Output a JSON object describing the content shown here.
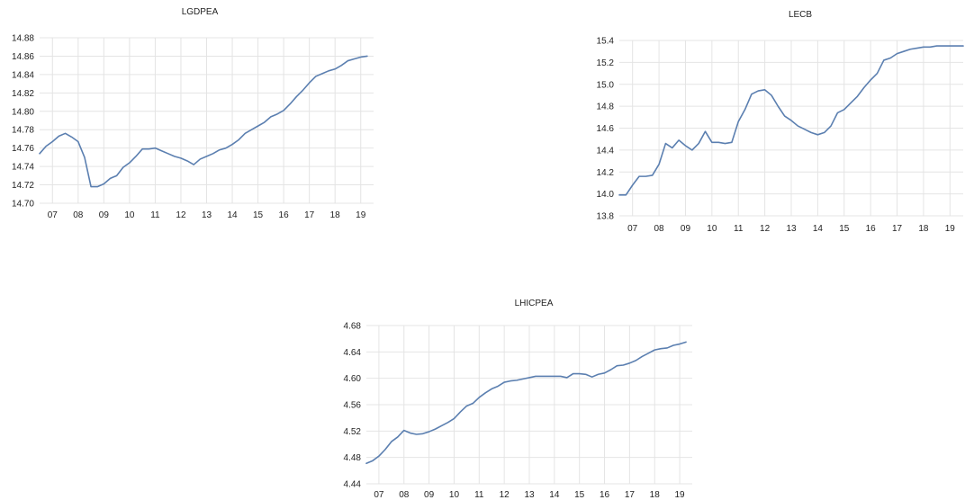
{
  "colors": {
    "series": "#5b7fb0",
    "grid": "#e4e4e4",
    "text": "#222222"
  },
  "chart_data": [
    {
      "type": "line",
      "title": "LGDPEA",
      "categories": [
        "07",
        "08",
        "09",
        "10",
        "11",
        "12",
        "13",
        "14",
        "15",
        "16",
        "17",
        "18",
        "19"
      ],
      "yticks": [
        "14.70",
        "14.72",
        "14.74",
        "14.76",
        "14.78",
        "14.80",
        "14.82",
        "14.84",
        "14.86",
        "14.88"
      ],
      "ylim": [
        14.7,
        14.88
      ],
      "xlim": [
        2006.5,
        2019.5
      ],
      "grid": true,
      "series": [
        {
          "x": [
            2006.5,
            2006.75,
            2007.0,
            2007.25,
            2007.5,
            2007.75,
            2008.0,
            2008.25,
            2008.5,
            2008.75,
            2009.0,
            2009.25,
            2009.5,
            2009.75,
            2010.0,
            2010.25,
            2010.5,
            2010.75,
            2011.0,
            2011.25,
            2011.5,
            2011.75,
            2012.0,
            2012.25,
            2012.5,
            2012.75,
            2013.0,
            2013.25,
            2013.5,
            2013.75,
            2014.0,
            2014.25,
            2014.5,
            2014.75,
            2015.0,
            2015.25,
            2015.5,
            2015.75,
            2016.0,
            2016.25,
            2016.5,
            2016.75,
            2017.0,
            2017.25,
            2017.5,
            2017.75,
            2018.0,
            2018.25,
            2018.5,
            2018.75,
            2019.0,
            2019.25
          ],
          "values": [
            14.754,
            14.762,
            14.767,
            14.773,
            14.776,
            14.772,
            14.767,
            14.75,
            14.718,
            14.718,
            14.721,
            14.727,
            14.73,
            14.739,
            14.744,
            14.751,
            14.759,
            14.759,
            14.76,
            14.757,
            14.754,
            14.751,
            14.749,
            14.746,
            14.742,
            14.748,
            14.751,
            14.754,
            14.758,
            14.76,
            14.764,
            14.769,
            14.776,
            14.78,
            14.784,
            14.788,
            14.794,
            14.797,
            14.801,
            14.808,
            14.816,
            14.823,
            14.831,
            14.838,
            14.841,
            14.844,
            14.846,
            14.85,
            14.855,
            14.857,
            14.859,
            14.86
          ]
        }
      ]
    },
    {
      "type": "line",
      "title": "LECB",
      "categories": [
        "07",
        "08",
        "09",
        "10",
        "11",
        "12",
        "13",
        "14",
        "15",
        "16",
        "17",
        "18",
        "19"
      ],
      "yticks": [
        "13.8",
        "14.0",
        "14.2",
        "14.4",
        "14.6",
        "14.8",
        "15.0",
        "15.2",
        "15.4"
      ],
      "ylim": [
        13.8,
        15.4
      ],
      "xlim": [
        2006.5,
        2019.5
      ],
      "grid": true,
      "series": [
        {
          "x": [
            2006.5,
            2006.75,
            2007.0,
            2007.25,
            2007.5,
            2007.75,
            2008.0,
            2008.25,
            2008.5,
            2008.75,
            2009.0,
            2009.25,
            2009.5,
            2009.75,
            2010.0,
            2010.25,
            2010.5,
            2010.75,
            2011.0,
            2011.25,
            2011.5,
            2011.75,
            2012.0,
            2012.25,
            2012.5,
            2012.75,
            2013.0,
            2013.25,
            2013.5,
            2013.75,
            2014.0,
            2014.25,
            2014.5,
            2014.75,
            2015.0,
            2015.25,
            2015.5,
            2015.75,
            2016.0,
            2016.25,
            2016.5,
            2016.75,
            2017.0,
            2017.25,
            2017.5,
            2017.75,
            2018.0,
            2018.25,
            2018.5,
            2018.75,
            2019.0,
            2019.25,
            2019.5
          ],
          "values": [
            13.99,
            13.99,
            14.08,
            14.16,
            14.16,
            14.17,
            14.27,
            14.46,
            14.42,
            14.49,
            14.44,
            14.4,
            14.46,
            14.57,
            14.47,
            14.47,
            14.46,
            14.47,
            14.66,
            14.77,
            14.91,
            14.94,
            14.95,
            14.9,
            14.8,
            14.71,
            14.67,
            14.62,
            14.59,
            14.56,
            14.54,
            14.56,
            14.62,
            14.74,
            14.77,
            14.83,
            14.89,
            14.97,
            15.04,
            15.1,
            15.22,
            15.24,
            15.28,
            15.3,
            15.32,
            15.33,
            15.34,
            15.34,
            15.35,
            15.35,
            15.35,
            15.35,
            15.35
          ]
        }
      ]
    },
    {
      "type": "line",
      "title": "LHICPEA",
      "categories": [
        "07",
        "08",
        "09",
        "10",
        "11",
        "12",
        "13",
        "14",
        "15",
        "16",
        "17",
        "18",
        "19"
      ],
      "yticks": [
        "4.44",
        "4.48",
        "4.52",
        "4.56",
        "4.60",
        "4.64",
        "4.68"
      ],
      "ylim": [
        4.44,
        4.68
      ],
      "xlim": [
        2006.5,
        2019.5
      ],
      "grid": true,
      "series": [
        {
          "x": [
            2006.5,
            2006.75,
            2007.0,
            2007.25,
            2007.5,
            2007.75,
            2008.0,
            2008.25,
            2008.5,
            2008.75,
            2009.0,
            2009.25,
            2009.5,
            2009.75,
            2010.0,
            2010.25,
            2010.5,
            2010.75,
            2011.0,
            2011.25,
            2011.5,
            2011.75,
            2012.0,
            2012.25,
            2012.5,
            2012.75,
            2013.0,
            2013.25,
            2013.5,
            2013.75,
            2014.0,
            2014.25,
            2014.5,
            2014.75,
            2015.0,
            2015.25,
            2015.5,
            2015.75,
            2016.0,
            2016.25,
            2016.5,
            2016.75,
            2017.0,
            2017.25,
            2017.5,
            2017.75,
            2018.0,
            2018.25,
            2018.5,
            2018.75,
            2019.0,
            2019.25
          ],
          "values": [
            4.471,
            4.475,
            4.482,
            4.492,
            4.504,
            4.511,
            4.521,
            4.517,
            4.515,
            4.516,
            4.519,
            4.523,
            4.528,
            4.533,
            4.539,
            4.549,
            4.558,
            4.562,
            4.571,
            4.578,
            4.584,
            4.588,
            4.594,
            4.596,
            4.597,
            4.599,
            4.601,
            4.603,
            4.603,
            4.603,
            4.603,
            4.603,
            4.601,
            4.607,
            4.607,
            4.606,
            4.602,
            4.606,
            4.608,
            4.613,
            4.619,
            4.62,
            4.623,
            4.627,
            4.633,
            4.638,
            4.643,
            4.645,
            4.646,
            4.65,
            4.652,
            4.655
          ]
        }
      ]
    }
  ]
}
